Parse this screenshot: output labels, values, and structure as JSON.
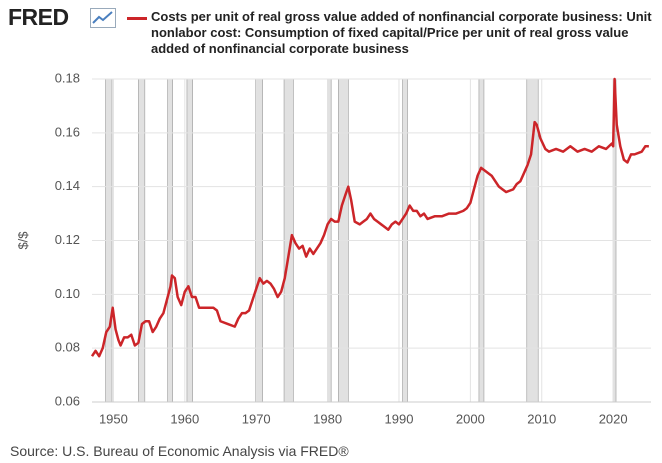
{
  "chart_data": {
    "type": "line",
    "logo": "FRED",
    "y_label": "$/$",
    "source": "Source: U.S. Bureau of Economic Analysis via FRED®",
    "grid": true,
    "xlim": [
      1947,
      2025.3
    ],
    "ylim": [
      0.06,
      0.18
    ],
    "xticks": [
      1950,
      1960,
      1970,
      1980,
      1990,
      2000,
      2010,
      2020
    ],
    "yticks": [
      0.06,
      0.08,
      {
        "value": 0.1,
        "label": "0.10"
      },
      0.12,
      0.14,
      0.16,
      0.18
    ],
    "recessions": [
      [
        1948.9,
        1949.8
      ],
      [
        1953.5,
        1954.4
      ],
      [
        1957.6,
        1958.3
      ],
      [
        1960.3,
        1961.1
      ],
      [
        1969.9,
        1970.9
      ],
      [
        1973.9,
        1975.2
      ],
      [
        1980.0,
        1980.5
      ],
      [
        1981.5,
        1982.9
      ],
      [
        1990.5,
        1991.2
      ],
      [
        2001.2,
        2001.9
      ],
      [
        2007.9,
        2009.5
      ],
      [
        2020.0,
        2020.4
      ]
    ],
    "x": [
      1947.0,
      1947.5,
      1948.0,
      1948.5,
      1949.0,
      1949.5,
      1949.9,
      1950.3,
      1950.7,
      1951.0,
      1951.5,
      1952.0,
      1952.5,
      1953.0,
      1953.5,
      1954.0,
      1954.5,
      1955.0,
      1955.5,
      1956.0,
      1956.5,
      1957.0,
      1957.5,
      1958.0,
      1958.2,
      1958.6,
      1959.0,
      1959.5,
      1960.0,
      1960.5,
      1961.0,
      1961.5,
      1962.0,
      1963.0,
      1964.0,
      1964.5,
      1965.0,
      1966.0,
      1967.0,
      1967.5,
      1968.0,
      1968.5,
      1969.0,
      1969.5,
      1970.0,
      1970.5,
      1971.0,
      1971.5,
      1972.0,
      1972.5,
      1973.0,
      1973.5,
      1974.0,
      1974.5,
      1975.0,
      1975.5,
      1976.0,
      1976.5,
      1977.0,
      1977.5,
      1978.0,
      1978.5,
      1979.0,
      1979.5,
      1980.0,
      1980.5,
      1981.0,
      1981.5,
      1982.0,
      1982.5,
      1982.9,
      1983.3,
      1983.8,
      1984.5,
      1985.0,
      1985.5,
      1986.0,
      1986.5,
      1987.0,
      1988.0,
      1988.5,
      1989.0,
      1989.5,
      1990.0,
      1990.5,
      1991.0,
      1991.5,
      1992.0,
      1992.5,
      1993.0,
      1993.5,
      1994.0,
      1995.0,
      1996.0,
      1997.0,
      1998.0,
      1999.0,
      1999.5,
      2000.0,
      2000.5,
      2001.0,
      2001.5,
      2002.0,
      2003.0,
      2004.0,
      2004.5,
      2005.0,
      2006.0,
      2006.5,
      2007.0,
      2007.5,
      2008.0,
      2008.5,
      2009.0,
      2009.3,
      2009.8,
      2010.5,
      2011.0,
      2012.0,
      2013.0,
      2014.0,
      2015.0,
      2016.0,
      2017.0,
      2018.0,
      2019.0,
      2019.8,
      2020.0,
      2020.2,
      2020.5,
      2021.0,
      2021.5,
      2022.0,
      2022.5,
      2023.0,
      2024.0,
      2024.5,
      2025.0
    ],
    "series": [
      {
        "name": "Costs per unit of real gross value added of nonfinancial corporate business: Unit nonlabor cost: Consumption of fixed capital/Price per unit of real gross value added of nonfinancial corporate business",
        "color": "#cc2529",
        "values": [
          0.077,
          0.079,
          0.077,
          0.08,
          0.086,
          0.088,
          0.095,
          0.087,
          0.083,
          0.081,
          0.084,
          0.084,
          0.085,
          0.081,
          0.082,
          0.089,
          0.09,
          0.09,
          0.086,
          0.088,
          0.091,
          0.093,
          0.098,
          0.103,
          0.107,
          0.106,
          0.099,
          0.096,
          0.101,
          0.103,
          0.099,
          0.099,
          0.095,
          0.095,
          0.095,
          0.094,
          0.09,
          0.089,
          0.088,
          0.091,
          0.093,
          0.093,
          0.094,
          0.098,
          0.102,
          0.106,
          0.104,
          0.105,
          0.104,
          0.102,
          0.099,
          0.101,
          0.106,
          0.114,
          0.122,
          0.119,
          0.117,
          0.118,
          0.114,
          0.117,
          0.115,
          0.117,
          0.119,
          0.122,
          0.126,
          0.128,
          0.127,
          0.127,
          0.133,
          0.137,
          0.14,
          0.135,
          0.127,
          0.126,
          0.127,
          0.128,
          0.13,
          0.128,
          0.127,
          0.125,
          0.124,
          0.126,
          0.127,
          0.126,
          0.128,
          0.13,
          0.133,
          0.131,
          0.131,
          0.129,
          0.13,
          0.128,
          0.129,
          0.129,
          0.13,
          0.13,
          0.131,
          0.132,
          0.134,
          0.139,
          0.144,
          0.147,
          0.146,
          0.144,
          0.14,
          0.139,
          0.138,
          0.139,
          0.141,
          0.142,
          0.145,
          0.148,
          0.152,
          0.164,
          0.163,
          0.158,
          0.154,
          0.153,
          0.154,
          0.153,
          0.155,
          0.153,
          0.154,
          0.153,
          0.155,
          0.154,
          0.156,
          0.155,
          0.18,
          0.163,
          0.155,
          0.15,
          0.149,
          0.152,
          0.152,
          0.153,
          0.155,
          0.155
        ]
      }
    ]
  }
}
